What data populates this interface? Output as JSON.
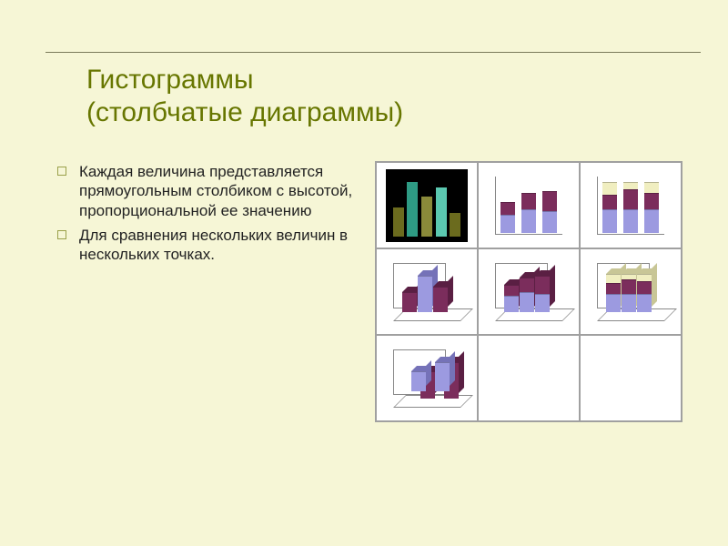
{
  "background_color": "#f6f6d6",
  "title_color": "#677600",
  "title_line1": "Гистограммы",
  "title_line2": "(столбчатые диаграммы)",
  "title_fontsize": 30,
  "bullets": [
    "Каждая величина представляется прямоугольным столбиком с высотой, пропорциональной ее значению",
    "Для сравнения нескольких величин в нескольких точках."
  ],
  "bullet_fontsize": 17,
  "palette": {
    "purple": "#7b2d5c",
    "lilac": "#9c9ae0",
    "cream": "#f0eec0",
    "olive1": "#6b6b1e",
    "olive2": "#8a8a3a",
    "teal1": "#2e9b84",
    "teal2": "#5bc8b0",
    "black": "#000000",
    "white": "#ffffff",
    "grid_border": "#a0a0a0"
  },
  "thumbnails": [
    {
      "type": "bar",
      "selected": true,
      "style": "2d",
      "bg": "#000000",
      "bars": [
        {
          "segs": [
            {
              "h": 32,
              "c": "#6b6b1e"
            }
          ]
        },
        {
          "segs": [
            {
              "h": 60,
              "c": "#2e9b84"
            }
          ]
        },
        {
          "segs": [
            {
              "h": 44,
              "c": "#8a8a3a"
            }
          ]
        },
        {
          "segs": [
            {
              "h": 54,
              "c": "#5bc8b0"
            }
          ]
        },
        {
          "segs": [
            {
              "h": 26,
              "c": "#6b6b1e"
            }
          ]
        }
      ]
    },
    {
      "type": "stacked",
      "style": "2d",
      "bg": "#ffffff",
      "axes": true,
      "bars": [
        {
          "segs": [
            {
              "h": 20,
              "c": "#9c9ae0"
            },
            {
              "h": 14,
              "c": "#7b2d5c"
            }
          ]
        },
        {
          "segs": [
            {
              "h": 26,
              "c": "#9c9ae0"
            },
            {
              "h": 18,
              "c": "#7b2d5c"
            }
          ]
        },
        {
          "segs": [
            {
              "h": 24,
              "c": "#9c9ae0"
            },
            {
              "h": 22,
              "c": "#7b2d5c"
            }
          ]
        }
      ]
    },
    {
      "type": "stacked",
      "style": "2d",
      "bg": "#ffffff",
      "axes": true,
      "bars": [
        {
          "segs": [
            {
              "h": 26,
              "c": "#9c9ae0"
            },
            {
              "h": 16,
              "c": "#7b2d5c"
            },
            {
              "h": 14,
              "c": "#f0eec0"
            }
          ]
        },
        {
          "segs": [
            {
              "h": 26,
              "c": "#9c9ae0"
            },
            {
              "h": 22,
              "c": "#7b2d5c"
            },
            {
              "h": 8,
              "c": "#f0eec0"
            }
          ]
        },
        {
          "segs": [
            {
              "h": 26,
              "c": "#9c9ae0"
            },
            {
              "h": 18,
              "c": "#7b2d5c"
            },
            {
              "h": 12,
              "c": "#f0eec0"
            }
          ]
        }
      ]
    },
    {
      "type": "bar",
      "style": "3d",
      "bg": "#ffffff",
      "iso": true,
      "bars": [
        {
          "segs": [
            {
              "h": 22,
              "c": "#7b2d5c"
            }
          ],
          "shade": "#5a1f43"
        },
        {
          "segs": [
            {
              "h": 40,
              "c": "#9c9ae0"
            }
          ],
          "shade": "#7572b8"
        },
        {
          "segs": [
            {
              "h": 28,
              "c": "#7b2d5c"
            }
          ],
          "shade": "#5a1f43"
        }
      ]
    },
    {
      "type": "stacked",
      "style": "3d",
      "bg": "#ffffff",
      "iso": true,
      "bars": [
        {
          "segs": [
            {
              "h": 18,
              "c": "#9c9ae0"
            },
            {
              "h": 12,
              "c": "#7b2d5c"
            }
          ],
          "shade": "#5a1f43"
        },
        {
          "segs": [
            {
              "h": 22,
              "c": "#9c9ae0"
            },
            {
              "h": 16,
              "c": "#7b2d5c"
            }
          ],
          "shade": "#5a1f43"
        },
        {
          "segs": [
            {
              "h": 20,
              "c": "#9c9ae0"
            },
            {
              "h": 20,
              "c": "#7b2d5c"
            }
          ],
          "shade": "#5a1f43"
        }
      ]
    },
    {
      "type": "stacked",
      "style": "3d",
      "bg": "#ffffff",
      "iso": true,
      "bars": [
        {
          "segs": [
            {
              "h": 20,
              "c": "#9c9ae0"
            },
            {
              "h": 12,
              "c": "#7b2d5c"
            },
            {
              "h": 10,
              "c": "#f0eec0"
            }
          ],
          "shade": "#c8c696"
        },
        {
          "segs": [
            {
              "h": 20,
              "c": "#9c9ae0"
            },
            {
              "h": 16,
              "c": "#7b2d5c"
            },
            {
              "h": 6,
              "c": "#f0eec0"
            }
          ],
          "shade": "#c8c696"
        },
        {
          "segs": [
            {
              "h": 20,
              "c": "#9c9ae0"
            },
            {
              "h": 14,
              "c": "#7b2d5c"
            },
            {
              "h": 8,
              "c": "#f0eec0"
            }
          ],
          "shade": "#c8c696"
        }
      ]
    },
    {
      "type": "bar",
      "style": "3d-depth",
      "bg": "#ffffff",
      "iso": true,
      "bars": [
        {
          "segs": [
            {
              "h": 22,
              "c": "#9c9ae0"
            }
          ],
          "shade": "#7572b8",
          "z": 0
        },
        {
          "segs": [
            {
              "h": 32,
              "c": "#9c9ae0"
            }
          ],
          "shade": "#7572b8",
          "z": 0
        },
        {
          "segs": [
            {
              "h": 30,
              "c": "#7b2d5c"
            }
          ],
          "shade": "#5a1f43",
          "z": 1
        },
        {
          "segs": [
            {
              "h": 40,
              "c": "#7b2d5c"
            }
          ],
          "shade": "#5a1f43",
          "z": 1
        }
      ]
    }
  ]
}
